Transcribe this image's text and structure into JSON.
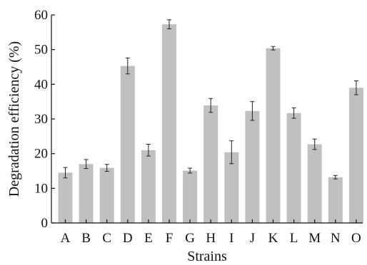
{
  "chart_data": {
    "type": "bar",
    "xlabel": "Strains",
    "ylabel": "Degradation efficiency (%)",
    "ylim": [
      0,
      60
    ],
    "yticks": [
      0,
      10,
      20,
      30,
      40,
      50,
      60
    ],
    "grid": false,
    "legend": "none",
    "bar_color": "#c0c0c0",
    "categories": [
      "A",
      "B",
      "C",
      "D",
      "E",
      "F",
      "G",
      "H",
      "I",
      "J",
      "K",
      "L",
      "M",
      "N",
      "O"
    ],
    "values": [
      14.5,
      17.0,
      15.9,
      45.3,
      21.0,
      57.3,
      15.1,
      33.9,
      20.4,
      32.3,
      50.4,
      31.7,
      22.7,
      13.2,
      39.0
    ],
    "errors": [
      1.5,
      1.3,
      1.0,
      2.3,
      1.7,
      1.3,
      0.7,
      2.0,
      3.3,
      2.7,
      0.5,
      1.5,
      1.5,
      0.5,
      2.0
    ]
  }
}
